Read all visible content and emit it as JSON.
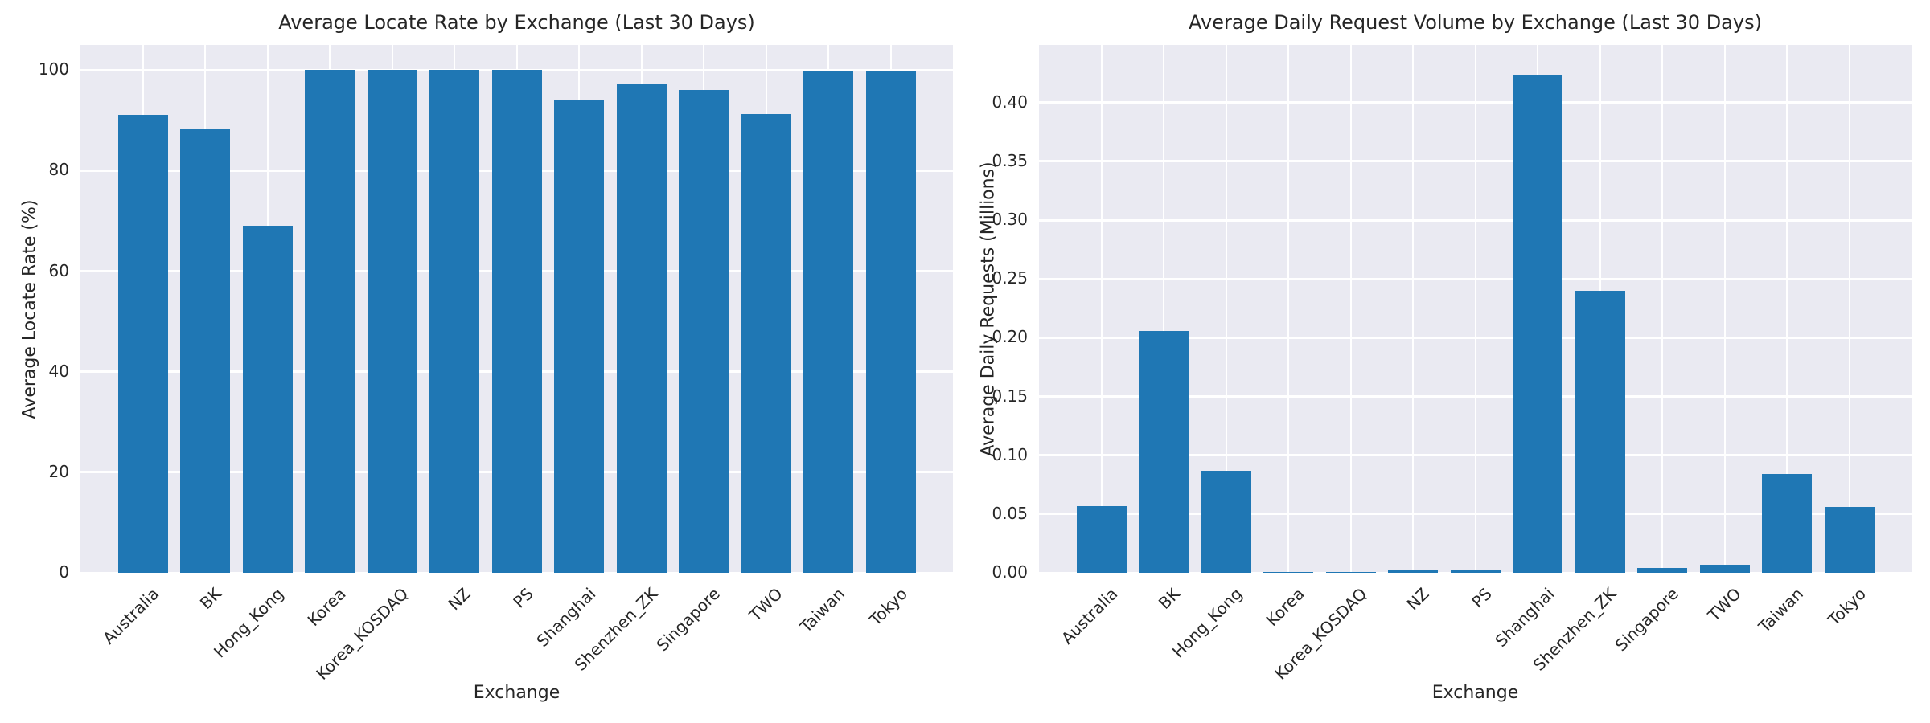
{
  "figure": {
    "background": "#ffffff",
    "plot_background": "#eaeaf2",
    "grid_color": "#ffffff",
    "bar_color": "#1f77b4",
    "text_color": "#262626"
  },
  "chart_data": [
    {
      "type": "bar",
      "title": "Average Locate Rate by Exchange (Last 30 Days)",
      "xlabel": "Exchange",
      "ylabel": "Average Locate Rate (%)",
      "legend": "none",
      "grid": "on",
      "categories": [
        "Australia",
        "BK",
        "Hong_Kong",
        "Korea",
        "Korea_KOSDAQ",
        "NZ",
        "PS",
        "Shanghai",
        "Shenzhen_ZK",
        "Singapore",
        "TWO",
        "Taiwan",
        "Tokyo"
      ],
      "values": [
        91.1,
        88.4,
        69.1,
        100,
        100,
        100,
        100,
        94.0,
        97.4,
        96.0,
        91.2,
        99.7,
        99.7
      ],
      "ylim": [
        0,
        105
      ],
      "yticks": [
        0,
        20,
        40,
        60,
        80,
        100
      ],
      "yticklabels": [
        "0",
        "20",
        "40",
        "60",
        "80",
        "100"
      ]
    },
    {
      "type": "bar",
      "title": "Average Daily Request Volume by Exchange (Last 30 Days)",
      "xlabel": "Exchange",
      "ylabel": "Average Daily Requests (Millions)",
      "legend": "none",
      "grid": "on",
      "categories": [
        "Australia",
        "BK",
        "Hong_Kong",
        "Korea",
        "Korea_KOSDAQ",
        "NZ",
        "PS",
        "Shanghai",
        "Shenzhen_ZK",
        "Singapore",
        "TWO",
        "Taiwan",
        "Tokyo"
      ],
      "values": [
        0.057,
        0.206,
        0.087,
        0.001,
        0.001,
        0.003,
        0.002,
        0.424,
        0.24,
        0.004,
        0.007,
        0.084,
        0.056
      ],
      "ylim": [
        0,
        0.449
      ],
      "yticks": [
        0.0,
        0.05,
        0.1,
        0.15,
        0.2,
        0.25,
        0.3,
        0.35,
        0.4
      ],
      "yticklabels": [
        "0.00",
        "0.05",
        "0.10",
        "0.15",
        "0.20",
        "0.25",
        "0.30",
        "0.35",
        "0.40"
      ]
    }
  ]
}
